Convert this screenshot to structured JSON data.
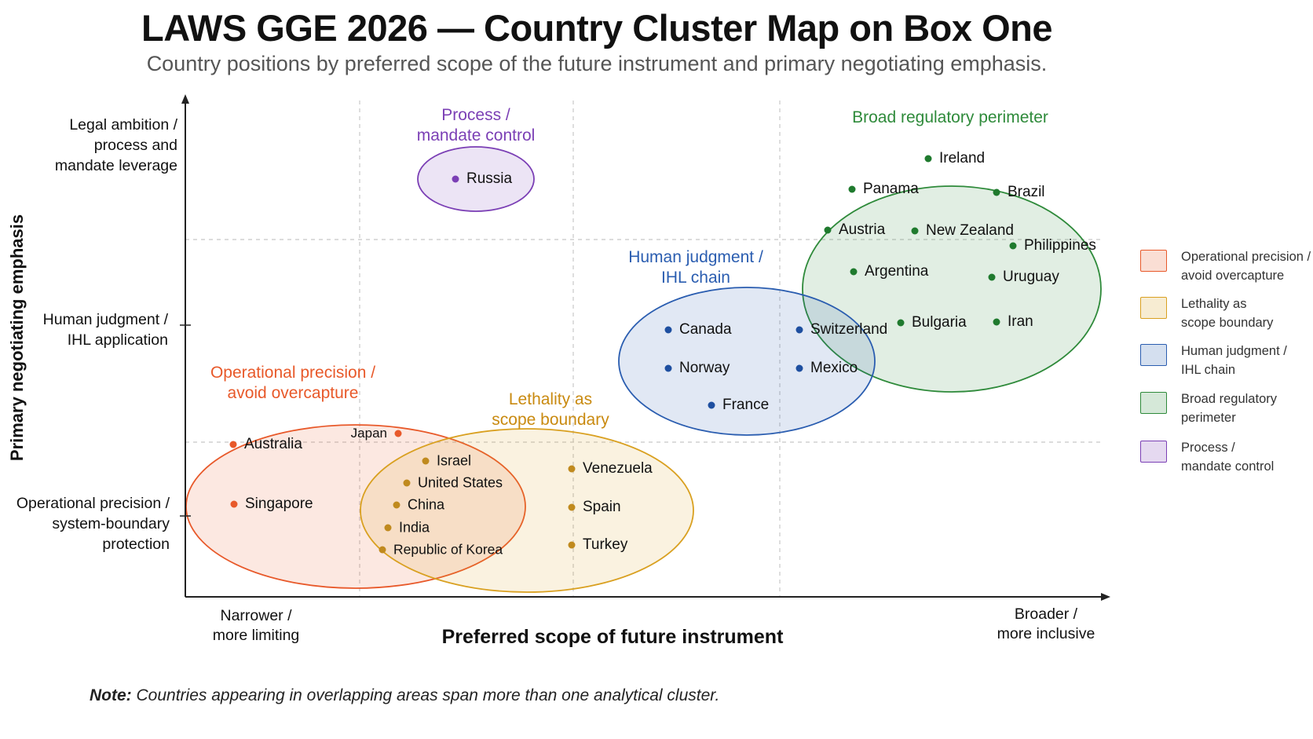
{
  "title": "LAWS GGE 2026 — Country Cluster Map on Box One",
  "subtitle": "Country positions by preferred scope of the future instrument and primary negotiating emphasis.",
  "y_axis": {
    "label": "Primary negotiating emphasis",
    "ticks": [
      "Legal ambition /\nprocess and\nmandate leverage",
      "Human judgment /\nIHL application",
      "Operational precision /\nsystem-boundary\nprotection"
    ]
  },
  "x_axis": {
    "label": "Preferred scope of future instrument",
    "low_end": "Narrower /\nmore limiting",
    "high_end": "Broader /\nmore inclusive"
  },
  "colors": {
    "operational": "#e8592a",
    "lethality": "#d9a020",
    "human": "#2a5db0",
    "broad": "#2e8a3a",
    "process": "#7b3fb5",
    "dot_operational": "#e8592a",
    "dot_lethality": "#c08a1e",
    "dot_human": "#1e4fa0",
    "dot_broad": "#1f7a2e",
    "dot_process": "#7b3fb5"
  },
  "clusters": [
    {
      "id": "process",
      "label": "Process /\nmandate control"
    },
    {
      "id": "broad",
      "label": "Broad regulatory perimeter"
    },
    {
      "id": "human",
      "label": "Human judgment /\nIHL chain"
    },
    {
      "id": "operational",
      "label": "Operational precision /\navoid overcapture"
    },
    {
      "id": "lethality",
      "label": "Lethality as\nscope boundary"
    }
  ],
  "countries": [
    {
      "name": "Russia",
      "cluster": "process"
    },
    {
      "name": "Ireland",
      "cluster": "broad"
    },
    {
      "name": "Panama",
      "cluster": "broad"
    },
    {
      "name": "Brazil",
      "cluster": "broad"
    },
    {
      "name": "Austria",
      "cluster": "broad"
    },
    {
      "name": "New Zealand",
      "cluster": "broad"
    },
    {
      "name": "Philippines",
      "cluster": "broad"
    },
    {
      "name": "Argentina",
      "cluster": "broad"
    },
    {
      "name": "Uruguay",
      "cluster": "broad"
    },
    {
      "name": "Bulgaria",
      "cluster": "broad"
    },
    {
      "name": "Iran",
      "cluster": "broad"
    },
    {
      "name": "Canada",
      "cluster": "human"
    },
    {
      "name": "Norway",
      "cluster": "human"
    },
    {
      "name": "France",
      "cluster": "human"
    },
    {
      "name": "Switzerland",
      "cluster": "human"
    },
    {
      "name": "Mexico",
      "cluster": "human"
    },
    {
      "name": "Australia",
      "cluster": "operational"
    },
    {
      "name": "Singapore",
      "cluster": "operational"
    },
    {
      "name": "Japan",
      "cluster": "operational"
    },
    {
      "name": "Israel",
      "cluster": "lethality"
    },
    {
      "name": "United States",
      "cluster": "lethality"
    },
    {
      "name": "China",
      "cluster": "lethality"
    },
    {
      "name": "India",
      "cluster": "lethality"
    },
    {
      "name": "Republic of Korea",
      "cluster": "lethality"
    },
    {
      "name": "Venezuela",
      "cluster": "lethality"
    },
    {
      "name": "Spain",
      "cluster": "lethality"
    },
    {
      "name": "Turkey",
      "cluster": "lethality"
    }
  ],
  "legend": [
    {
      "cluster": "operational",
      "label": "Operational precision /\navoid overcapture"
    },
    {
      "cluster": "lethality",
      "label": "Lethality as\nscope boundary"
    },
    {
      "cluster": "human",
      "label": "Human judgment /\nIHL chain"
    },
    {
      "cluster": "broad",
      "label": "Broad regulatory\nperimeter"
    },
    {
      "cluster": "process",
      "label": "Process /\nmandate control"
    }
  ],
  "note": {
    "lead": "Note:",
    "text": " Countries appearing in overlapping areas span more than one analytical cluster."
  }
}
